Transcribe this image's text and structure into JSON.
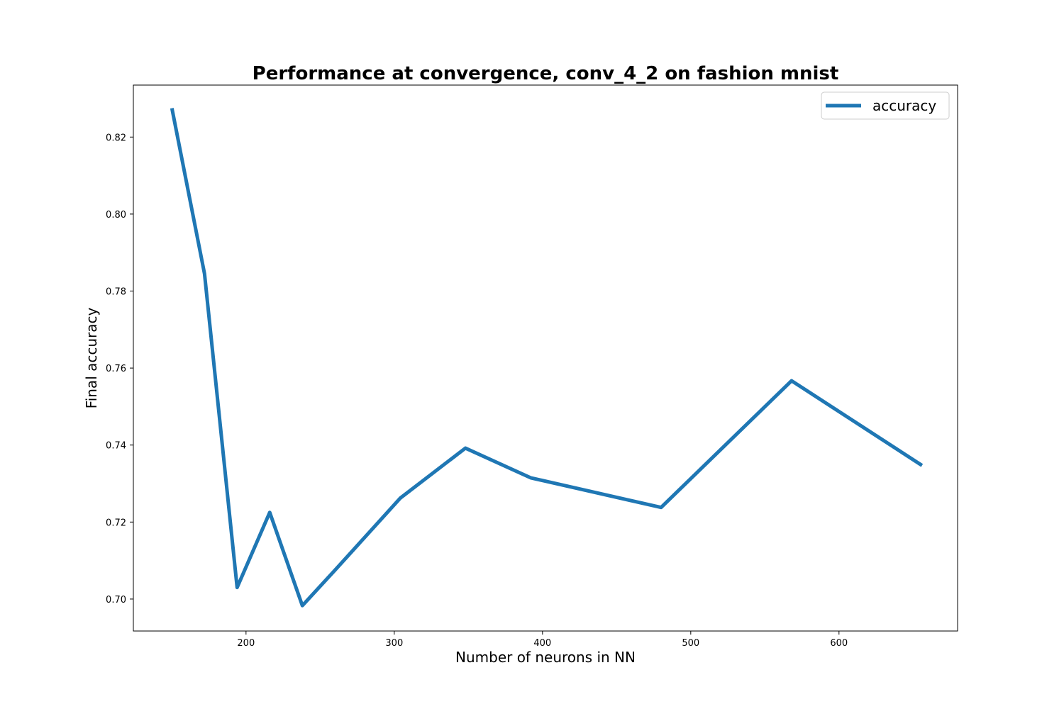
{
  "chart_data": {
    "type": "line",
    "title": "Performance at convergence, conv_4_2 on fashion mnist",
    "xlabel": "Number of neurons in NN",
    "ylabel": "Final accuracy",
    "xlim": [
      124,
      680
    ],
    "ylim": [
      0.6917,
      0.8335
    ],
    "x_ticks": [
      200,
      300,
      400,
      500,
      600
    ],
    "y_ticks": [
      0.7,
      0.72,
      0.74,
      0.76,
      0.78,
      0.8,
      0.82
    ],
    "y_tick_labels": [
      "0.70",
      "0.72",
      "0.74",
      "0.76",
      "0.78",
      "0.80",
      "0.82"
    ],
    "grid": false,
    "legend_placement": "top-right",
    "series": [
      {
        "name": "accuracy",
        "color": "#1f77b4",
        "x": [
          150,
          172,
          194,
          216,
          238,
          260,
          304,
          348,
          392,
          480,
          568,
          656
        ],
        "y": [
          0.8275,
          0.7845,
          0.703,
          0.7225,
          0.6983,
          0.7075,
          0.7262,
          0.7392,
          0.7315,
          0.7238,
          0.7567,
          0.7347
        ]
      }
    ]
  }
}
